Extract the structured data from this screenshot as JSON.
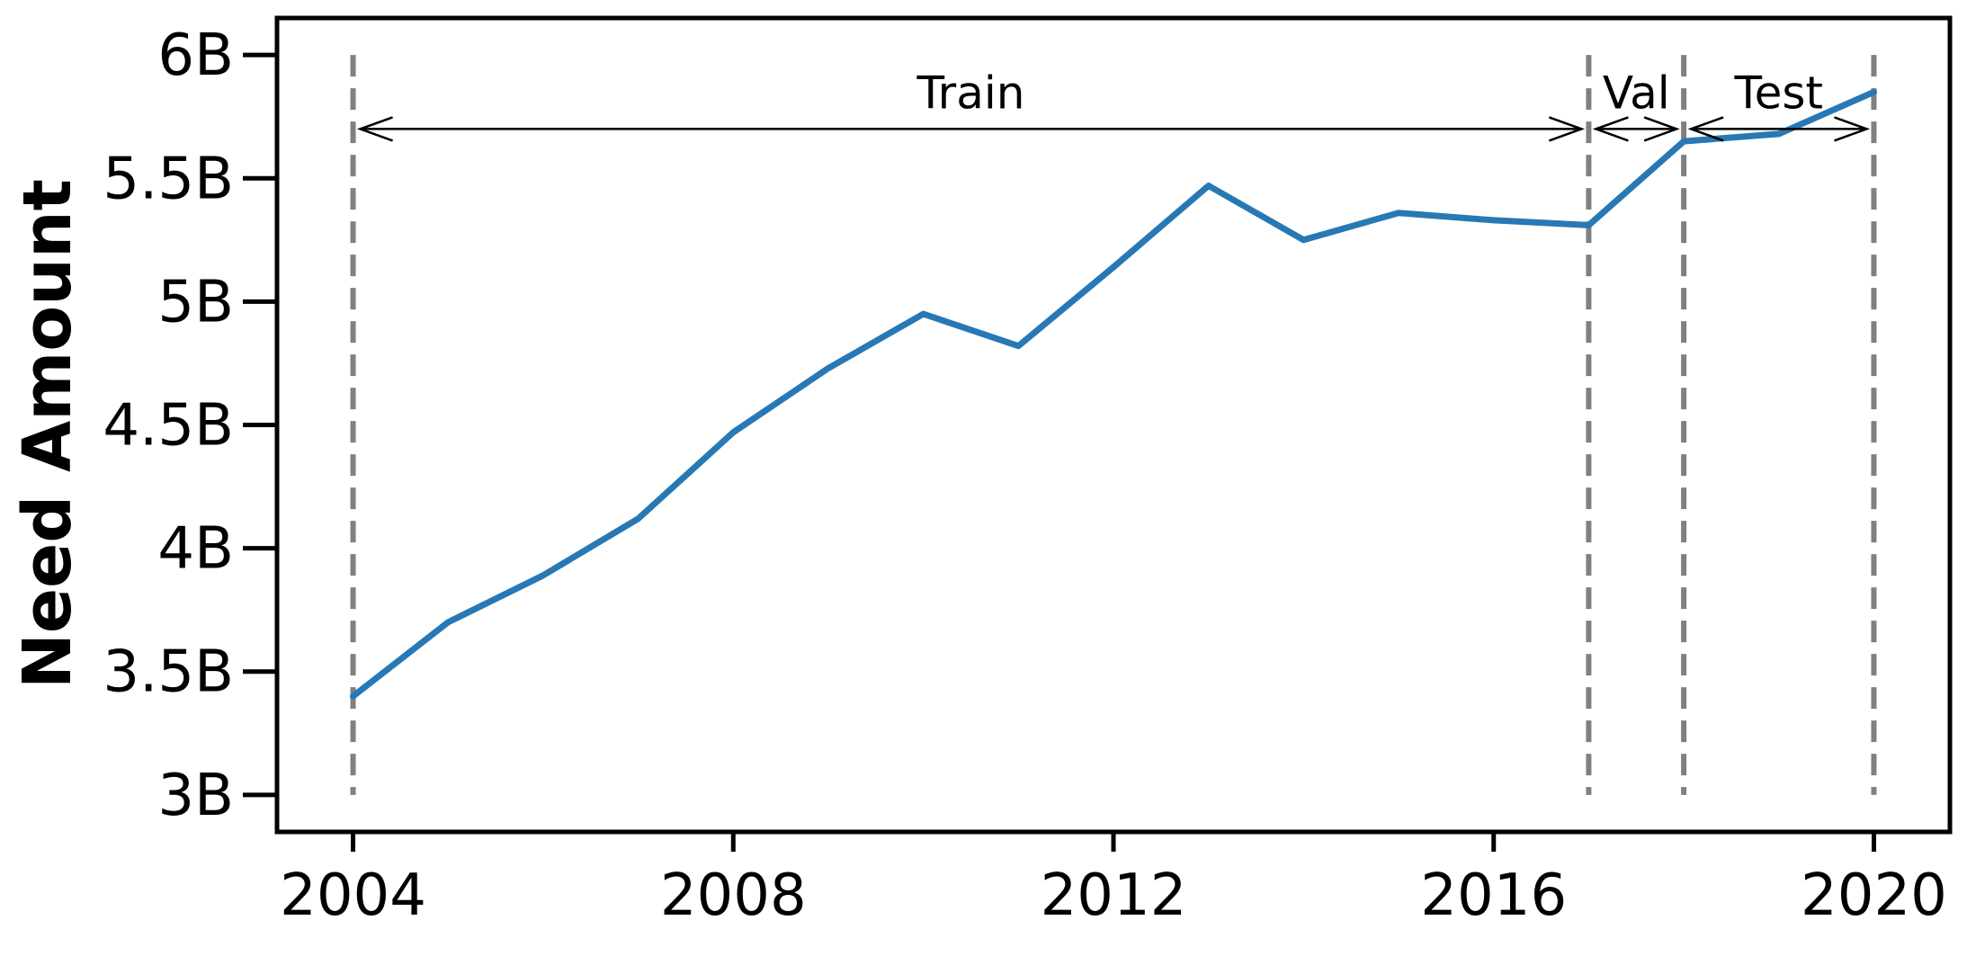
{
  "chart_data": {
    "type": "line",
    "title": "",
    "xlabel": "",
    "ylabel": "Need Amount",
    "xlim": [
      2003.2,
      2020.8
    ],
    "ylim": [
      2.85,
      6.15
    ],
    "grid": false,
    "x_ticks": [
      2004,
      2008,
      2012,
      2016,
      2020
    ],
    "x_tick_labels": [
      "2004",
      "2008",
      "2012",
      "2016",
      "2020"
    ],
    "y_ticks": [
      3,
      3.5,
      4,
      4.5,
      5,
      5.5,
      6
    ],
    "y_tick_labels": [
      "3B",
      "3.5B",
      "4B",
      "4.5B",
      "5B",
      "5.5B",
      "6B"
    ],
    "series": [
      {
        "color": "#2878b5",
        "x": [
          2004,
          2005,
          2006,
          2007,
          2008,
          2009,
          2010,
          2011,
          2012,
          2013,
          2014,
          2015,
          2016,
          2017,
          2018,
          2019,
          2020
        ],
        "values": [
          3.4,
          3.7,
          3.89,
          4.12,
          4.47,
          4.73,
          4.95,
          4.82,
          5.14,
          5.47,
          5.25,
          5.36,
          5.33,
          5.31,
          5.65,
          5.68,
          5.85
        ]
      }
    ],
    "split_lines": {
      "x": [
        2004,
        2017,
        2018,
        2020
      ],
      "y_range": [
        3,
        6
      ],
      "color": "#808080"
    },
    "annotations": [
      {
        "text": "Train",
        "x_start": 2004,
        "x_end": 2017,
        "arrow_y": 5.7
      },
      {
        "text": "Val",
        "x_start": 2017,
        "x_end": 2018,
        "arrow_y": 5.7
      },
      {
        "text": "Test",
        "x_start": 2018,
        "x_end": 2020,
        "arrow_y": 5.7
      }
    ]
  }
}
